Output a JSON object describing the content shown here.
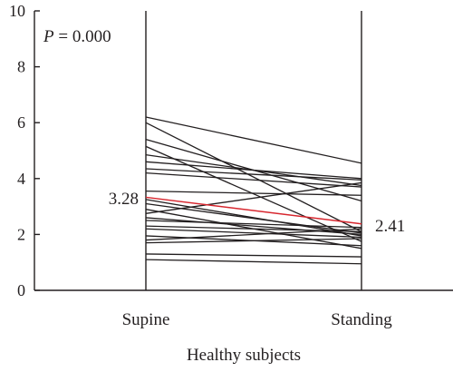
{
  "chart_data": {
    "type": "line",
    "title": "",
    "xlabel": "Healthy subjects",
    "ylabel": "",
    "categories": [
      "Supine",
      "Standing"
    ],
    "ylim": [
      0,
      10
    ],
    "yticks": [
      "0",
      "2",
      "4",
      "6",
      "8",
      "10"
    ],
    "annotation": {
      "p_label": "P",
      "p_value": " = 0.000"
    },
    "mean_labels": {
      "supine": "3.28",
      "standing": "2.41"
    },
    "mean_series": {
      "values": [
        3.33,
        2.38
      ],
      "color": "#d7262e"
    },
    "series": [
      {
        "values": [
          6.2,
          4.55
        ]
      },
      {
        "values": [
          6.0,
          2.1
        ]
      },
      {
        "values": [
          5.4,
          3.2
        ]
      },
      {
        "values": [
          5.15,
          1.75
        ]
      },
      {
        "values": [
          4.85,
          3.75
        ]
      },
      {
        "values": [
          4.6,
          4.0
        ]
      },
      {
        "values": [
          4.35,
          3.95
        ]
      },
      {
        "values": [
          4.2,
          3.7
        ]
      },
      {
        "values": [
          3.55,
          3.4
        ]
      },
      {
        "values": [
          3.25,
          1.95
        ]
      },
      {
        "values": [
          3.1,
          2.05
        ]
      },
      {
        "values": [
          2.9,
          1.5
        ]
      },
      {
        "values": [
          2.75,
          3.85
        ]
      },
      {
        "values": [
          2.6,
          2.0
        ]
      },
      {
        "values": [
          2.5,
          2.25
        ]
      },
      {
        "values": [
          2.3,
          2.1
        ]
      },
      {
        "values": [
          2.2,
          1.9
        ]
      },
      {
        "values": [
          1.95,
          1.6
        ]
      },
      {
        "values": [
          1.8,
          2.2
        ]
      },
      {
        "values": [
          1.7,
          1.85
        ]
      },
      {
        "values": [
          1.3,
          1.2
        ]
      },
      {
        "values": [
          1.1,
          0.95
        ]
      }
    ]
  }
}
